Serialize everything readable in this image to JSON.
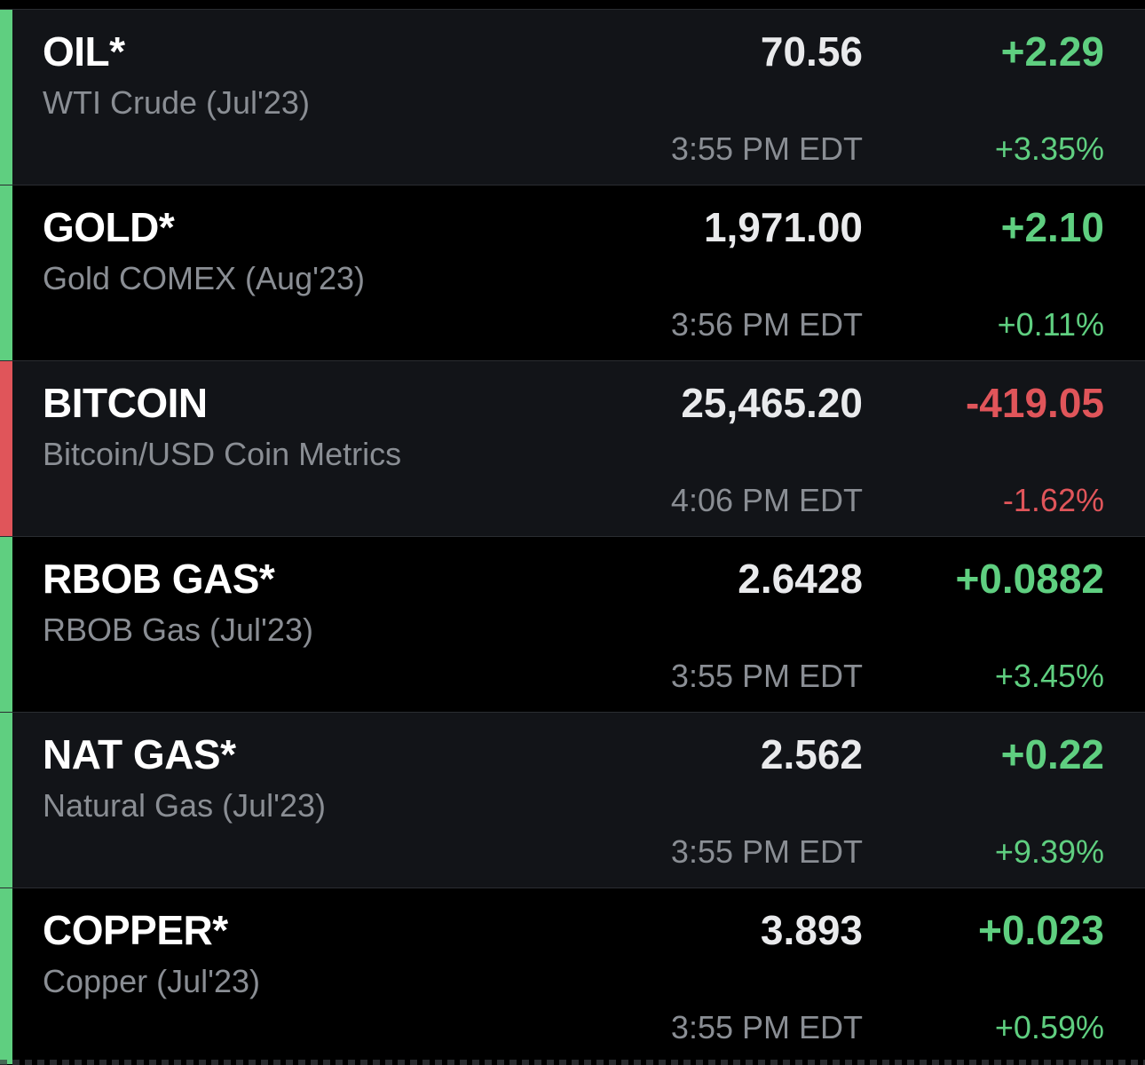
{
  "colors": {
    "up": "#5fcf80",
    "down": "#e0555a",
    "row_alt_bg": "#121418",
    "row_plain_bg": "#000000"
  },
  "quotes": [
    {
      "symbol": "OIL*",
      "description": "WTI Crude (Jul'23)",
      "price": "70.56",
      "change": "+2.29",
      "change_pct": "+3.35%",
      "time": "3:55 PM EDT",
      "direction": "up"
    },
    {
      "symbol": "GOLD*",
      "description": "Gold COMEX (Aug'23)",
      "price": "1,971.00",
      "change": "+2.10",
      "change_pct": "+0.11%",
      "time": "3:56 PM EDT",
      "direction": "up"
    },
    {
      "symbol": "BITCOIN",
      "description": "Bitcoin/USD Coin Metrics",
      "price": "25,465.20",
      "change": "-419.05",
      "change_pct": "-1.62%",
      "time": "4:06 PM EDT",
      "direction": "down"
    },
    {
      "symbol": "RBOB GAS*",
      "description": "RBOB Gas (Jul'23)",
      "price": "2.6428",
      "change": "+0.0882",
      "change_pct": "+3.45%",
      "time": "3:55 PM EDT",
      "direction": "up"
    },
    {
      "symbol": "NAT GAS*",
      "description": "Natural Gas (Jul'23)",
      "price": "2.562",
      "change": "+0.22",
      "change_pct": "+9.39%",
      "time": "3:55 PM EDT",
      "direction": "up"
    },
    {
      "symbol": "COPPER*",
      "description": "Copper (Jul'23)",
      "price": "3.893",
      "change": "+0.023",
      "change_pct": "+0.59%",
      "time": "3:55 PM EDT",
      "direction": "up"
    }
  ]
}
